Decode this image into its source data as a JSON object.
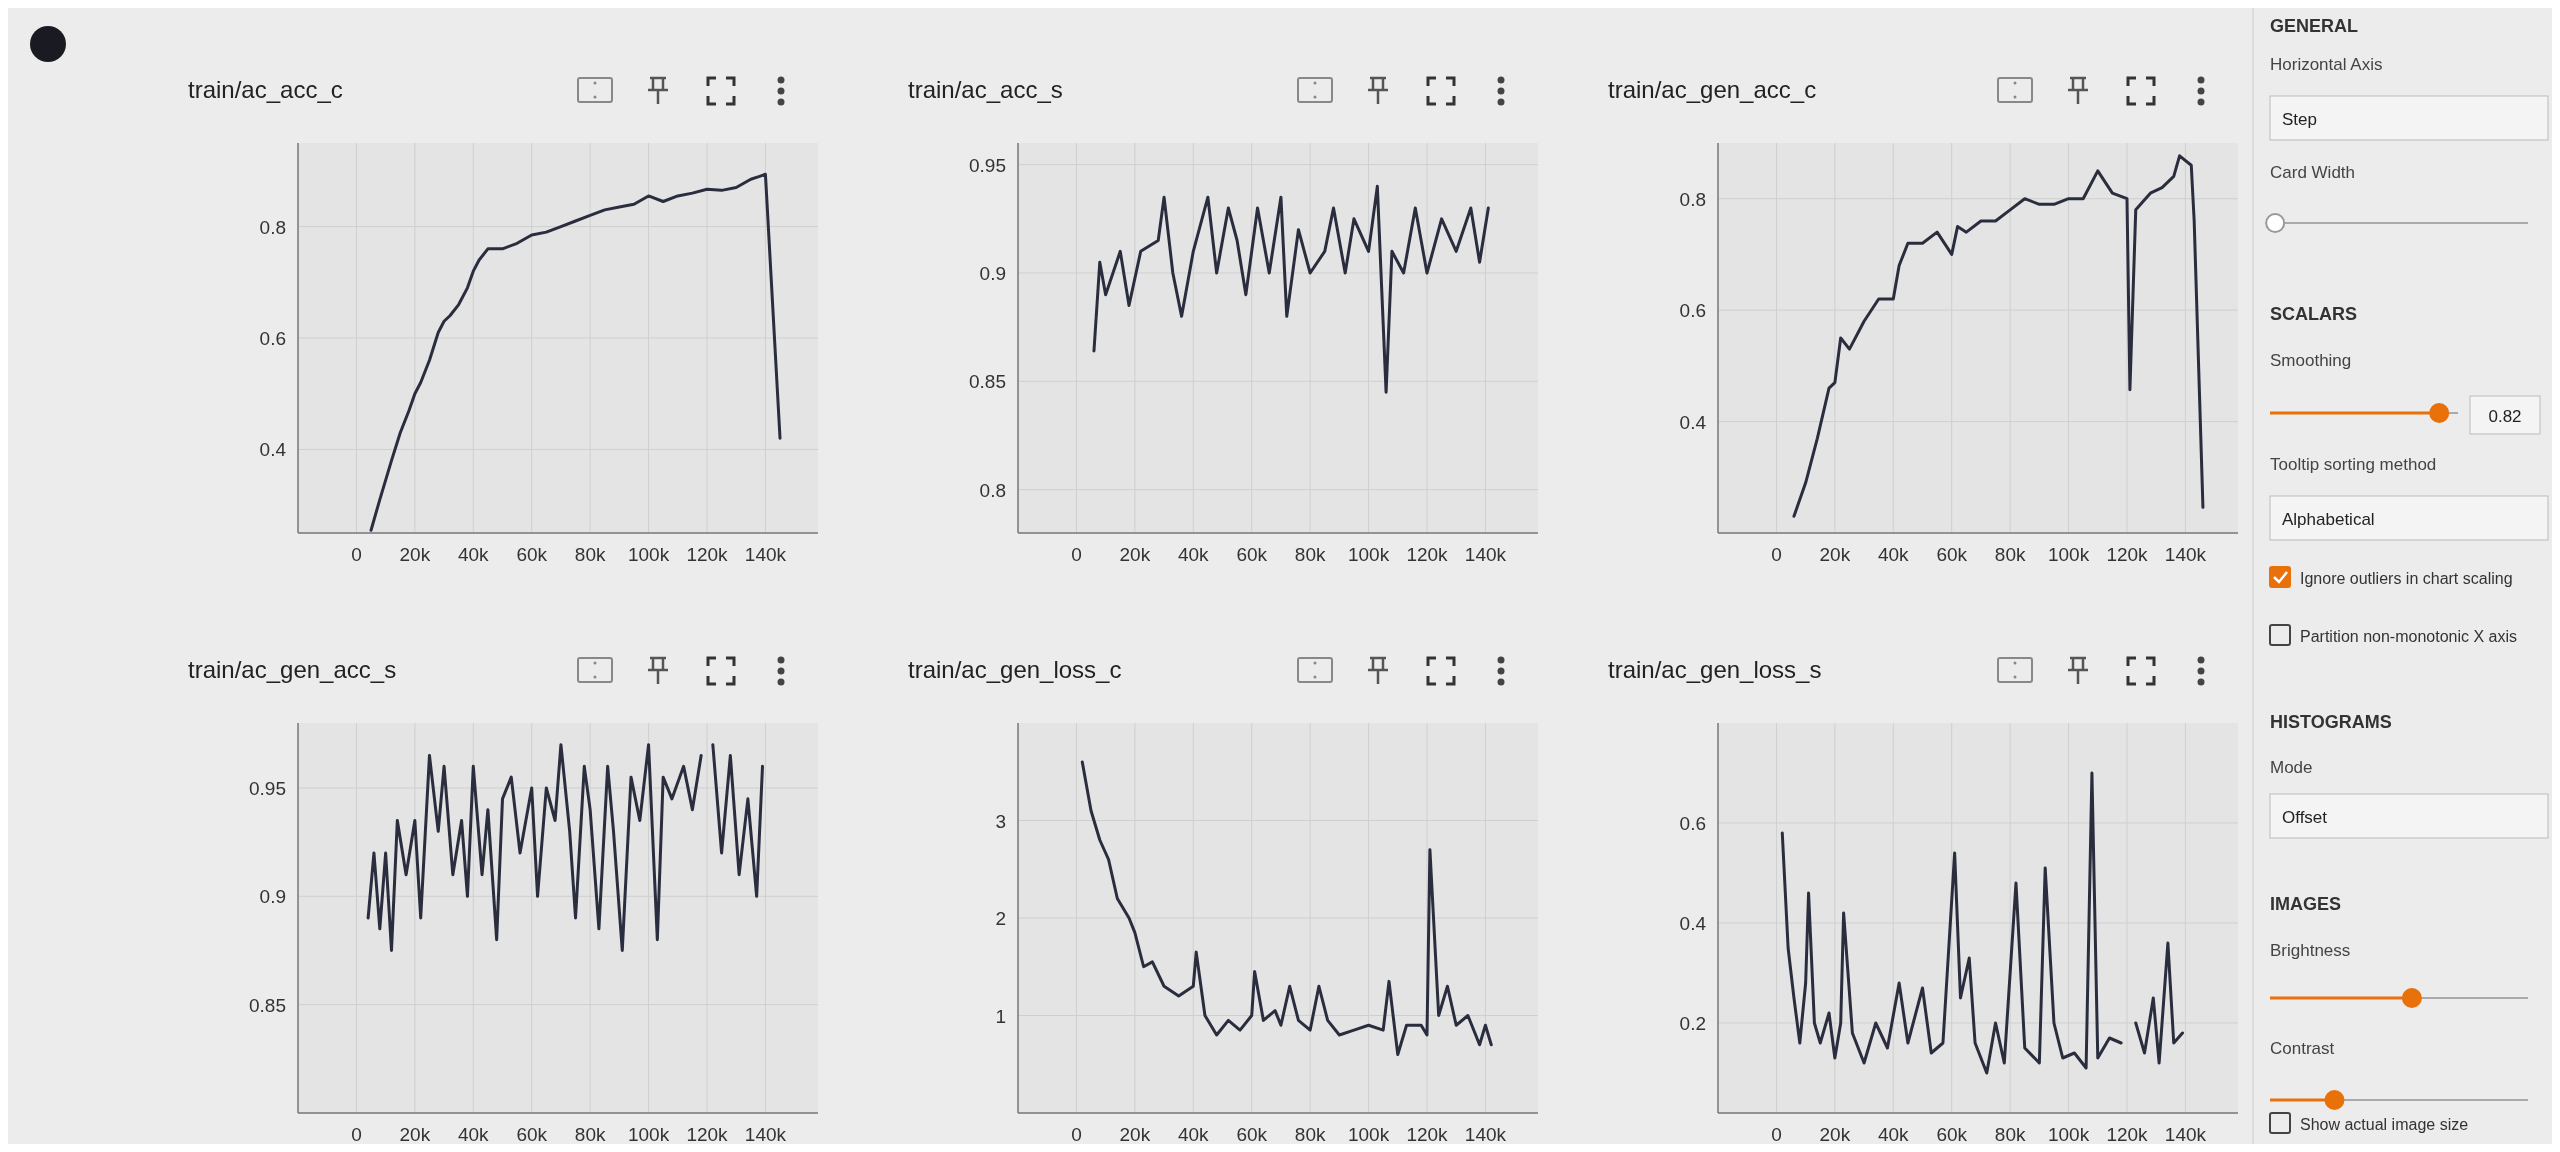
{
  "chart_data": [
    {
      "type": "line",
      "title": "train/ac_acc_c",
      "color": "#2a2d3e",
      "grid": true,
      "xlim": [
        -20000,
        158000
      ],
      "xticks": [
        {
          "value": 0,
          "label": "0"
        },
        {
          "value": 20000,
          "label": "20k"
        },
        {
          "value": 40000,
          "label": "40k"
        },
        {
          "value": 60000,
          "label": "60k"
        },
        {
          "value": 80000,
          "label": "80k"
        },
        {
          "value": 100000,
          "label": "100k"
        },
        {
          "value": 120000,
          "label": "120k"
        },
        {
          "value": 140000,
          "label": "140k"
        }
      ],
      "ylim": [
        0.25,
        0.95
      ],
      "yticks": [
        0.4,
        0.6,
        0.8
      ],
      "x": [
        5000,
        8000,
        12000,
        15000,
        18000,
        20000,
        22000,
        25000,
        28000,
        30000,
        32000,
        35000,
        38000,
        40000,
        42000,
        45000,
        50000,
        55000,
        60000,
        65000,
        70000,
        75000,
        80000,
        85000,
        90000,
        95000,
        100000,
        105000,
        110000,
        115000,
        120000,
        125000,
        130000,
        135000,
        138000,
        140000,
        145000
      ],
      "values": [
        0.255,
        0.31,
        0.38,
        0.43,
        0.47,
        0.5,
        0.52,
        0.56,
        0.61,
        0.63,
        0.64,
        0.66,
        0.69,
        0.72,
        0.74,
        0.76,
        0.76,
        0.77,
        0.785,
        0.79,
        0.8,
        0.81,
        0.82,
        0.83,
        0.835,
        0.84,
        0.855,
        0.845,
        0.855,
        0.86,
        0.867,
        0.865,
        0.87,
        0.885,
        0.89,
        0.894,
        0.42
      ]
    },
    {
      "type": "line",
      "title": "train/ac_acc_s",
      "color": "#2a2d3e",
      "grid": true,
      "xlim": [
        -20000,
        158000
      ],
      "xticks": [
        {
          "value": 0,
          "label": "0"
        },
        {
          "value": 20000,
          "label": "20k"
        },
        {
          "value": 40000,
          "label": "40k"
        },
        {
          "value": 60000,
          "label": "60k"
        },
        {
          "value": 80000,
          "label": "80k"
        },
        {
          "value": 100000,
          "label": "100k"
        },
        {
          "value": 120000,
          "label": "120k"
        },
        {
          "value": 140000,
          "label": "140k"
        }
      ],
      "ylim": [
        0.78,
        0.96
      ],
      "yticks": [
        0.8,
        0.85,
        0.9,
        0.95
      ],
      "x": [
        6000,
        8000,
        10000,
        15000,
        18000,
        22000,
        28000,
        30000,
        33000,
        36000,
        40000,
        45000,
        48000,
        52000,
        55000,
        58000,
        62000,
        66000,
        70000,
        72000,
        76000,
        80000,
        85000,
        88000,
        92000,
        95000,
        100000,
        103000,
        106000,
        108000,
        112000,
        116000,
        120000,
        125000,
        130000,
        135000,
        138000,
        141000
      ],
      "values": [
        0.864,
        0.905,
        0.89,
        0.91,
        0.885,
        0.91,
        0.915,
        0.935,
        0.9,
        0.88,
        0.91,
        0.935,
        0.9,
        0.93,
        0.915,
        0.89,
        0.93,
        0.9,
        0.935,
        0.88,
        0.92,
        0.9,
        0.91,
        0.93,
        0.9,
        0.925,
        0.91,
        0.94,
        0.845,
        0.91,
        0.9,
        0.93,
        0.9,
        0.925,
        0.91,
        0.93,
        0.905,
        0.93
      ]
    },
    {
      "type": "line",
      "title": "train/ac_gen_acc_c",
      "color": "#2a2d3e",
      "grid": true,
      "xlim": [
        -20000,
        158000
      ],
      "xticks": [
        {
          "value": 0,
          "label": "0"
        },
        {
          "value": 20000,
          "label": "20k"
        },
        {
          "value": 40000,
          "label": "40k"
        },
        {
          "value": 60000,
          "label": "60k"
        },
        {
          "value": 80000,
          "label": "80k"
        },
        {
          "value": 100000,
          "label": "100k"
        },
        {
          "value": 120000,
          "label": "120k"
        },
        {
          "value": 140000,
          "label": "140k"
        }
      ],
      "ylim": [
        0.2,
        0.9
      ],
      "yticks": [
        0.4,
        0.6,
        0.8
      ],
      "x": [
        6000,
        10000,
        14000,
        18000,
        20000,
        22000,
        25000,
        30000,
        35000,
        40000,
        42000,
        45000,
        50000,
        55000,
        60000,
        62000,
        65000,
        70000,
        75000,
        80000,
        85000,
        90000,
        95000,
        100000,
        105000,
        110000,
        115000,
        120000,
        121000,
        123000,
        128000,
        132000,
        136000,
        138000,
        142000,
        143000,
        146000
      ],
      "values": [
        0.23,
        0.29,
        0.37,
        0.46,
        0.47,
        0.55,
        0.53,
        0.58,
        0.62,
        0.62,
        0.68,
        0.72,
        0.72,
        0.74,
        0.7,
        0.75,
        0.74,
        0.76,
        0.76,
        0.78,
        0.8,
        0.79,
        0.79,
        0.8,
        0.8,
        0.85,
        0.81,
        0.8,
        0.457,
        0.78,
        0.81,
        0.82,
        0.84,
        0.877,
        0.86,
        0.76,
        0.246
      ]
    },
    {
      "type": "line",
      "title": "train/ac_gen_acc_s",
      "color": "#2a2d3e",
      "grid": true,
      "xlim": [
        -20000,
        158000
      ],
      "xticks": [
        {
          "value": 0,
          "label": "0"
        },
        {
          "value": 20000,
          "label": "20k"
        },
        {
          "value": 40000,
          "label": "40k"
        },
        {
          "value": 60000,
          "label": "60k"
        },
        {
          "value": 80000,
          "label": "80k"
        },
        {
          "value": 100000,
          "label": "100k"
        },
        {
          "value": 120000,
          "label": "120k"
        },
        {
          "value": 140000,
          "label": "140k"
        }
      ],
      "ylim": [
        0.8,
        0.98
      ],
      "yticks": [
        0.85,
        0.9,
        0.95
      ],
      "x": [
        4000,
        6000,
        8000,
        10000,
        12000,
        14000,
        17000,
        20000,
        22000,
        25000,
        28000,
        30000,
        33000,
        36000,
        38000,
        40000,
        43000,
        45000,
        48000,
        50000,
        53000,
        56000,
        60000,
        62000,
        65000,
        68000,
        70000,
        73000,
        75000,
        78000,
        80000,
        83000,
        86000,
        88000,
        91000,
        94000,
        97000,
        100000,
        103000,
        105000,
        108000,
        112000,
        115000,
        118000,
        120000,
        122000,
        125000,
        128000,
        131000,
        134000,
        137000,
        139000
      ],
      "values": [
        0.89,
        0.92,
        0.885,
        0.92,
        0.875,
        0.935,
        0.91,
        0.935,
        0.89,
        0.965,
        0.93,
        0.96,
        0.91,
        0.935,
        0.9,
        0.96,
        0.91,
        0.94,
        0.88,
        0.945,
        0.955,
        0.92,
        0.95,
        0.9,
        0.95,
        0.935,
        0.97,
        0.93,
        0.89,
        0.96,
        0.94,
        0.885,
        0.96,
        0.93,
        0.875,
        0.955,
        0.935,
        0.97,
        0.88,
        0.955,
        0.945,
        0.96,
        0.94,
        0.965,
        null,
        0.97,
        0.92,
        0.965,
        0.91,
        0.945,
        0.9,
        0.96
      ]
    },
    {
      "type": "line",
      "title": "train/ac_gen_loss_c",
      "color": "#2a2d3e",
      "grid": true,
      "xlim": [
        -20000,
        158000
      ],
      "xticks": [
        {
          "value": 0,
          "label": "0"
        },
        {
          "value": 20000,
          "label": "20k"
        },
        {
          "value": 40000,
          "label": "40k"
        },
        {
          "value": 60000,
          "label": "60k"
        },
        {
          "value": 80000,
          "label": "80k"
        },
        {
          "value": 100000,
          "label": "100k"
        },
        {
          "value": 120000,
          "label": "120k"
        },
        {
          "value": 140000,
          "label": "140k"
        }
      ],
      "ylim": [
        0,
        4
      ],
      "yticks": [
        1,
        2,
        3
      ],
      "x": [
        2000,
        5000,
        8000,
        11000,
        14000,
        18000,
        20000,
        23000,
        26000,
        30000,
        35000,
        40000,
        41000,
        44000,
        48000,
        52000,
        56000,
        60000,
        61000,
        64000,
        68000,
        70000,
        73000,
        76000,
        80000,
        83000,
        86000,
        90000,
        95000,
        100000,
        105000,
        107000,
        110000,
        113000,
        118000,
        120000,
        121000,
        124000,
        127000,
        130000,
        134000,
        138000,
        140000,
        142000
      ],
      "values": [
        3.6,
        3.1,
        2.8,
        2.6,
        2.2,
        2,
        1.85,
        1.5,
        1.55,
        1.3,
        1.2,
        1.3,
        1.65,
        1,
        0.8,
        0.95,
        0.85,
        1,
        1.45,
        0.95,
        1.05,
        0.9,
        1.3,
        0.95,
        0.85,
        1.3,
        0.95,
        0.8,
        0.85,
        0.9,
        0.85,
        1.35,
        0.6,
        0.9,
        0.9,
        0.8,
        2.7,
        1,
        1.3,
        0.9,
        1,
        0.7,
        0.9,
        0.7
      ]
    },
    {
      "type": "line",
      "title": "train/ac_gen_loss_s",
      "color": "#2a2d3e",
      "grid": true,
      "xlim": [
        -20000,
        158000
      ],
      "xticks": [
        {
          "value": 0,
          "label": "0"
        },
        {
          "value": 20000,
          "label": "20k"
        },
        {
          "value": 40000,
          "label": "40k"
        },
        {
          "value": 60000,
          "label": "60k"
        },
        {
          "value": 80000,
          "label": "80k"
        },
        {
          "value": 100000,
          "label": "100k"
        },
        {
          "value": 120000,
          "label": "120k"
        },
        {
          "value": 140000,
          "label": "140k"
        }
      ],
      "ylim": [
        0.02,
        0.8
      ],
      "yticks": [
        0.2,
        0.4,
        0.6
      ],
      "x": [
        2000,
        4000,
        6000,
        8000,
        10000,
        11000,
        13000,
        15000,
        18000,
        20000,
        22000,
        23000,
        26000,
        30000,
        34000,
        38000,
        42000,
        45000,
        50000,
        53000,
        57000,
        61000,
        63000,
        66000,
        68000,
        72000,
        75000,
        78000,
        82000,
        85000,
        90000,
        92000,
        95000,
        98000,
        102000,
        106000,
        108000,
        110000,
        114000,
        118000,
        121000,
        123000,
        126000,
        129000,
        131000,
        134000,
        136000,
        139000
      ],
      "values": [
        0.58,
        0.35,
        0.25,
        0.16,
        0.28,
        0.46,
        0.2,
        0.16,
        0.22,
        0.13,
        0.2,
        0.42,
        0.18,
        0.12,
        0.2,
        0.15,
        0.28,
        0.16,
        0.27,
        0.14,
        0.16,
        0.54,
        0.25,
        0.33,
        0.16,
        0.1,
        0.2,
        0.12,
        0.48,
        0.15,
        0.12,
        0.51,
        0.2,
        0.13,
        0.14,
        0.11,
        0.7,
        0.13,
        0.17,
        0.16,
        null,
        0.2,
        0.14,
        0.25,
        0.12,
        0.36,
        0.16,
        0.18
      ]
    },
    {
      "type": "other",
      "title": "GENERAL",
      "annotations": [
        "Horizontal Axis",
        "Step",
        "Card Width",
        "SCALARS",
        "Smoothing",
        "0.82",
        "Tooltip sorting method",
        "Alphabetical",
        "Ignore outliers in chart scaling",
        "Partition non-monotonic X axis",
        "HISTOGRAMS",
        "Mode",
        "Offset",
        "IMAGES",
        "Brightness",
        "Contrast",
        "Show actual image size"
      ]
    }
  ]
}
